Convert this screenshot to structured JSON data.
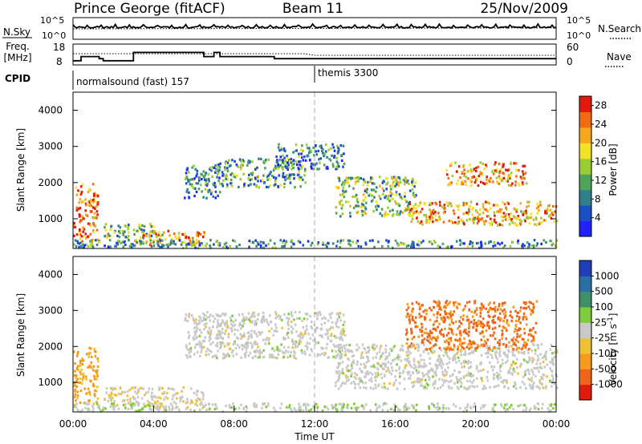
{
  "header": {
    "station": "Prince George (fitACF)",
    "beam": "Beam 11",
    "date": "25/Nov/2009"
  },
  "nsky_panel": {
    "left_label": "N.Sky",
    "right_label": "N.Search",
    "left_ticks": [
      "10^5",
      "10^0"
    ],
    "right_ticks": [
      "10^5",
      "10^0"
    ]
  },
  "freq_panel": {
    "left_label_1": "Freq.",
    "left_label_2": "[MHz]",
    "right_label": "Nave",
    "left_ticks": [
      "18",
      "8"
    ],
    "right_ticks": [
      "60",
      "0"
    ]
  },
  "cpid_panel": {
    "label": "CPID",
    "modes": [
      {
        "name": "normalsound (fast) 157",
        "start_hour": 0
      },
      {
        "name": "themis 3300",
        "start_hour": 12
      }
    ]
  },
  "chart_data": [
    {
      "type": "heatmap",
      "name": "power",
      "title": "",
      "xlabel": "Time UT",
      "ylabel": "Slant Range [km]",
      "xlim": [
        0,
        24
      ],
      "ylim": [
        180,
        4500
      ],
      "x_ticks": [
        "00:00",
        "04:00",
        "08:00",
        "12:00",
        "16:00",
        "20:00",
        "00:00"
      ],
      "y_ticks": [
        "1000",
        "2000",
        "3000",
        "4000"
      ],
      "colorbar": {
        "label": "Power [dB]",
        "ticks": [
          "4",
          "8",
          "12",
          "16",
          "20",
          "24",
          "28"
        ],
        "range": [
          0,
          30
        ],
        "colors": [
          "#1f22ff",
          "#1b4fc8",
          "#2f7f8c",
          "#4ea35a",
          "#9acd32",
          "#f2e126",
          "#f7a81b",
          "#f36a10",
          "#e11a0c"
        ]
      },
      "features": [
        {
          "t0": 0.0,
          "t1": 1.2,
          "r0": 400,
          "r1": 2000,
          "level": 0.8
        },
        {
          "t0": 1.5,
          "t1": 4.0,
          "r0": 500,
          "r1": 900,
          "level": 0.45
        },
        {
          "t0": 3.0,
          "t1": 6.5,
          "r0": 300,
          "r1": 700,
          "level": 0.7
        },
        {
          "t0": 5.5,
          "t1": 7.3,
          "r0": 1600,
          "r1": 2500,
          "level": 0.3
        },
        {
          "t0": 7.0,
          "t1": 11.5,
          "r0": 1900,
          "r1": 2700,
          "level": 0.35
        },
        {
          "t0": 10.0,
          "t1": 13.5,
          "r0": 2400,
          "r1": 3100,
          "level": 0.3
        },
        {
          "t0": 13.0,
          "t1": 17.0,
          "r0": 1100,
          "r1": 2200,
          "level": 0.45
        },
        {
          "t0": 16.5,
          "t1": 24.0,
          "r0": 850,
          "r1": 1500,
          "level": 0.7
        },
        {
          "t0": 18.5,
          "t1": 22.5,
          "r0": 1950,
          "r1": 2600,
          "level": 0.75
        },
        {
          "t0": 0.0,
          "t1": 24.0,
          "r0": 200,
          "r1": 450,
          "level": 0.3
        }
      ]
    },
    {
      "type": "heatmap",
      "name": "velocity",
      "title": "",
      "xlabel": "Time UT",
      "ylabel": "Slant Range [km]",
      "xlim": [
        0,
        24
      ],
      "ylim": [
        180,
        4500
      ],
      "x_ticks": [
        "00:00",
        "04:00",
        "08:00",
        "12:00",
        "16:00",
        "20:00",
        "00:00"
      ],
      "y_ticks": [
        "1000",
        "2000",
        "3000",
        "4000"
      ],
      "colorbar": {
        "label": "Velocity [m s",
        "label_superscript": "-1",
        "label_close": "]",
        "ticks": [
          "1000",
          "500",
          "100",
          "25",
          "-25",
          "-100",
          "-500",
          "-1000"
        ],
        "range": [
          -1000,
          1000
        ],
        "colors": [
          "#1f3fb8",
          "#2a6fa6",
          "#3f8f68",
          "#7fcc3b",
          "#c9c9c9",
          "#f0c233",
          "#f59a1c",
          "#f0641a",
          "#e11a0c"
        ]
      },
      "features": [
        {
          "t0": 0.0,
          "t1": 1.2,
          "r0": 400,
          "r1": 2000,
          "v": -400
        },
        {
          "t0": 1.5,
          "t1": 6.5,
          "r0": 300,
          "r1": 900,
          "v": -80
        },
        {
          "t0": 5.5,
          "t1": 13.5,
          "r0": 1700,
          "r1": 3000,
          "v": 0
        },
        {
          "t0": 13.0,
          "t1": 24.0,
          "r0": 850,
          "r1": 2100,
          "v": 0
        },
        {
          "t0": 16.5,
          "t1": 23.0,
          "r0": 1950,
          "r1": 3300,
          "v": -600
        },
        {
          "t0": 0.0,
          "t1": 24.0,
          "r0": 200,
          "r1": 450,
          "v": 60
        }
      ]
    }
  ]
}
